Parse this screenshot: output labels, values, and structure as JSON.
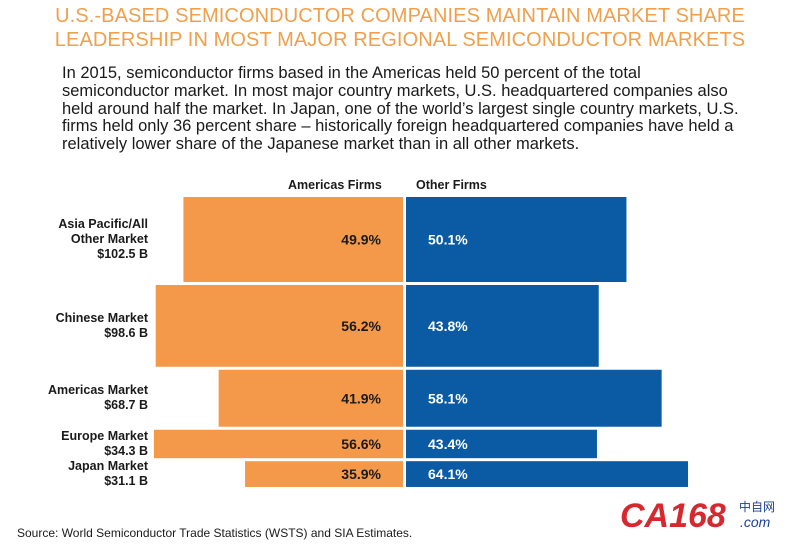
{
  "title": "U.S.-BASED SEMICONDUCTOR COMPANIES MAINTAIN MARKET SHARE\nLEADERSHIP IN MOST MAJOR REGIONAL SEMICONDUCTOR MARKETS",
  "body_text": "In 2015, semiconductor firms based in the Americas held 50 percent of the total semiconductor market.  In most major country markets, U.S. headquartered companies also held around half the market.  In Japan, one of the world’s largest single country markets, U.S. firms held only 36 percent share – historically foreign headquartered companies have held a relatively lower share of the Japanese market than in all other markets.",
  "source": "Source: World Semiconductor Trade Statistics (WSTS) and SIA Estimates.",
  "logo": {
    "main": "CA168",
    "cn": "中自网",
    "dotcom": ".com"
  },
  "colors": {
    "americas": "#f4994a",
    "other": "#0a5ba3",
    "title": "#f0a04b",
    "logo_red": "#d8282f",
    "logo_blue": "#1c3f94"
  },
  "chart_data": {
    "type": "bar",
    "series": [
      {
        "name": "Americas Firms",
        "values": [
          49.9,
          56.2,
          41.9,
          56.6,
          35.9
        ],
        "labels": [
          "49.9%",
          "56.2%",
          "41.9%",
          "56.6%",
          "35.9%"
        ]
      },
      {
        "name": "Other Firms",
        "values": [
          50.1,
          43.8,
          58.1,
          43.4,
          64.1
        ],
        "labels": [
          "50.1%",
          "43.8%",
          "58.1%",
          "43.4%",
          "64.1%"
        ]
      }
    ],
    "categories": [
      {
        "label": "Asia Pacific/All\nOther Market\n$102.5 B",
        "market_size_b": 102.5
      },
      {
        "label": "Chinese Market\n$98.6 B",
        "market_size_b": 98.6
      },
      {
        "label": "Americas Market\n$68.7 B",
        "market_size_b": 68.7
      },
      {
        "label": "Europe Market\n$34.3 B",
        "market_size_b": 34.3
      },
      {
        "label": "Japan Market\n$31.1 B",
        "market_size_b": 31.1
      }
    ],
    "units": "percent share",
    "legend_position": "top"
  }
}
